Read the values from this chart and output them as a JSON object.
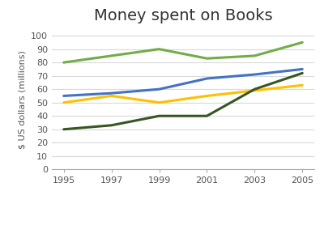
{
  "title": "Money spent on Books",
  "ylabel": "$ US dollars (millions)",
  "years": [
    1995,
    1997,
    1999,
    2001,
    2003,
    2005
  ],
  "series": {
    "Germany": {
      "values": [
        80,
        85,
        90,
        83,
        85,
        95
      ],
      "color": "#70ad47",
      "linewidth": 2.2
    },
    "France": {
      "values": [
        55,
        57,
        60,
        68,
        71,
        75
      ],
      "color": "#4472c4",
      "linewidth": 2.2
    },
    "Italy": {
      "values": [
        50,
        55,
        50,
        55,
        59,
        63
      ],
      "color": "#ffc000",
      "linewidth": 2.2
    },
    "Austria": {
      "values": [
        30,
        33,
        40,
        40,
        60,
        72
      ],
      "color": "#375623",
      "linewidth": 2.2
    }
  },
  "ylim": [
    0,
    105
  ],
  "yticks": [
    0,
    10,
    20,
    30,
    40,
    50,
    60,
    70,
    80,
    90,
    100
  ],
  "xticks": [
    1995,
    1997,
    1999,
    2001,
    2003,
    2005
  ],
  "background_color": "#ffffff",
  "grid_color": "#d9d9d9",
  "title_fontsize": 14,
  "label_fontsize": 8,
  "tick_fontsize": 8,
  "legend_fontsize": 9
}
